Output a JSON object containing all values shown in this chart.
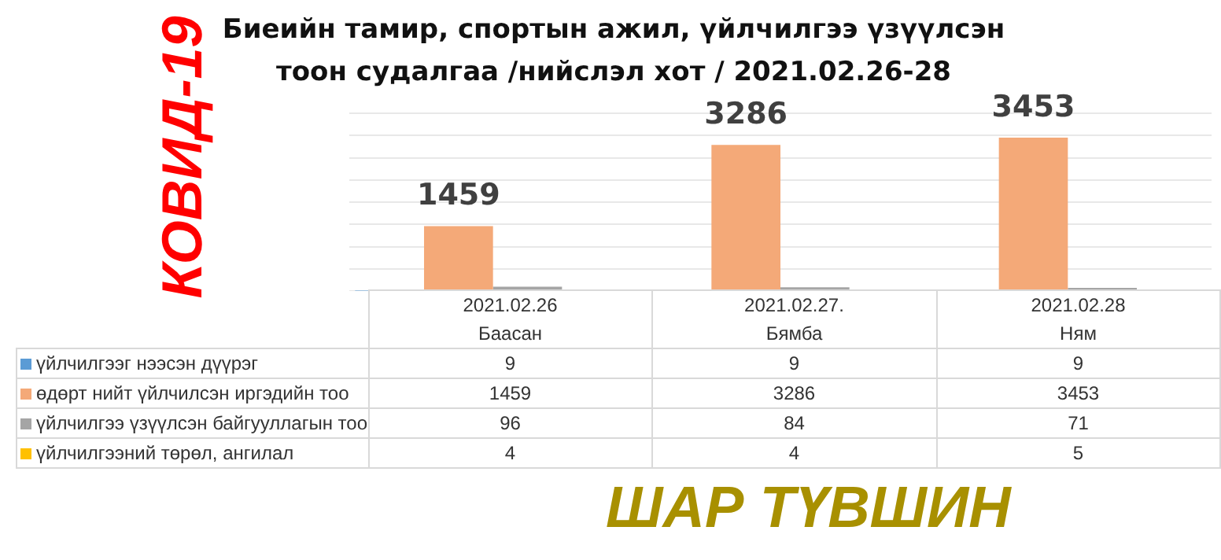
{
  "chart_data": {
    "type": "bar",
    "title": "Биеийн тамир, спортын ажил, үйлчилгээ үзүүлсэн тоон судалгаа /нийслэл хот / 2021.02.26-28",
    "categories": [
      "2021.02.26\nБаасан",
      "2021.02.27.\nБямба",
      "2021.02.28\nНям"
    ],
    "series": [
      {
        "name": "үйлчилгээг нээсэн дүүрэг",
        "color": "#5b9bd5",
        "values": [
          9,
          9,
          9
        ]
      },
      {
        "name": "өдөрт нийт үйлчилсэн иргэдийн тоо",
        "color": "#f4a978",
        "values": [
          1459,
          3286,
          3453
        ],
        "value_labels": [
          "1459",
          "3286",
          "3453"
        ]
      },
      {
        "name": "үйлчилгээ үзүүлсэн байгууллагын тоо",
        "color": "#a5a5a5",
        "values": [
          96,
          84,
          71
        ]
      },
      {
        "name": "үйлчилгээний төрөл, ангилал",
        "color": "#ffc000",
        "values": [
          4,
          4,
          5
        ]
      }
    ],
    "ylim": [
      0,
      4000
    ],
    "yticks": [
      {
        "value": 0,
        "label": null
      },
      {
        "value": 500,
        "label": null
      },
      {
        "value": 1000,
        "label": null
      },
      {
        "value": 1500,
        "label": null
      },
      {
        "value": 2000,
        "label": null
      },
      {
        "value": 2500,
        "label": null
      },
      {
        "value": 3000,
        "label": null
      },
      {
        "value": 3500,
        "label": null
      },
      {
        "value": 4000,
        "label": null
      }
    ],
    "grid": "y",
    "tick_labels": "x",
    "legend": "bottom",
    "data_labels": true,
    "annotations": [
      "КОВИД-19",
      "ШАР ТҮВШИН"
    ]
  }
}
